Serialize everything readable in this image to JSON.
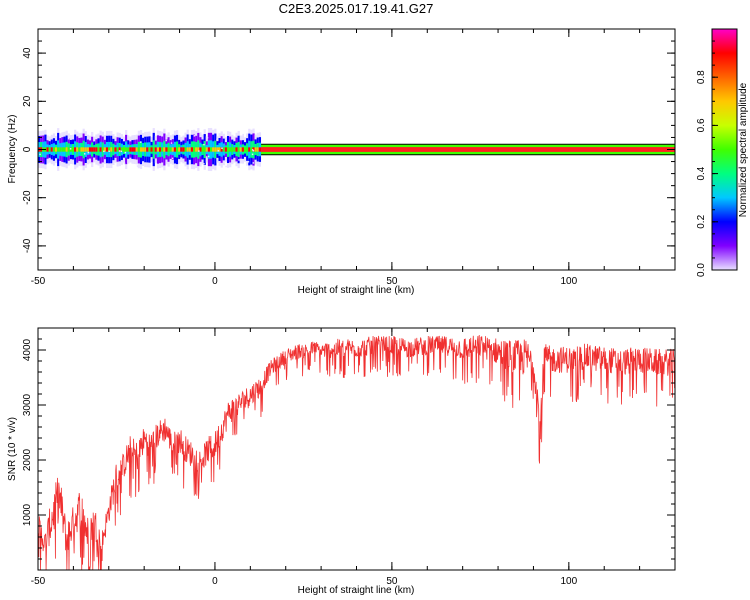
{
  "title": "C2E3.2025.017.19.41.G27",
  "chart_data": [
    {
      "type": "heatmap",
      "title": "C2E3.2025.017.19.41.G27",
      "xlabel": "Height of straight line (km)",
      "ylabel": "Frequency (Hz)",
      "xlim": [
        -50,
        130
      ],
      "ylim": [
        -50,
        50
      ],
      "xticks": [
        -50,
        0,
        50,
        100
      ],
      "xtick_labels": [
        "-50",
        "0",
        "50",
        "100"
      ],
      "yticks": [
        -40,
        -20,
        0,
        20,
        40
      ],
      "ytick_labels": [
        "-40",
        "-20",
        "0",
        "20",
        "40"
      ],
      "frequency_band": {
        "center": 0,
        "halfwidth": 2.2
      },
      "broadening_region_x": [
        -50,
        13
      ],
      "colorbar": {
        "label": "Normalized spectral amplitude",
        "range": [
          0,
          1
        ],
        "ticks": [
          0.0,
          0.2,
          0.4,
          0.6,
          0.8
        ],
        "tick_labels": [
          "0.0",
          "0.2",
          "0.4",
          "0.6",
          "0.8"
        ],
        "colors": [
          "#e8e0ff",
          "#8000ff",
          "#0000ff",
          "#00c8ff",
          "#00ff80",
          "#40ff00",
          "#c8ff00",
          "#ffc800",
          "#ff6400",
          "#ff0000",
          "#ff00c8"
        ]
      },
      "grid": false
    },
    {
      "type": "line",
      "xlabel": "Height of straight line (km)",
      "ylabel": "SNR (10 * v/v)",
      "xlim": [
        -50,
        130
      ],
      "ylim": [
        0,
        4400
      ],
      "xticks": [
        -50,
        0,
        50,
        100
      ],
      "xtick_labels": [
        "-50",
        "0",
        "50",
        "100"
      ],
      "yticks": [
        1000,
        2000,
        3000,
        4000
      ],
      "ytick_labels": [
        "1000",
        "2000",
        "3000",
        "4000"
      ],
      "color": "#f03030",
      "grid": false,
      "series": [
        {
          "x": [
            -50,
            -48,
            -46,
            -44,
            -42,
            -40,
            -38,
            -36,
            -34,
            -32,
            -30,
            -28,
            -26,
            -24,
            -22,
            -20,
            -18,
            -16,
            -14,
            -12,
            -10,
            -8,
            -6,
            -4,
            -2,
            0,
            2,
            4,
            6,
            8,
            10,
            12,
            14,
            16,
            18,
            20,
            22,
            24,
            26,
            28,
            30,
            35,
            40,
            45,
            50,
            55,
            60,
            65,
            70,
            75,
            80,
            85,
            88,
            90,
            92,
            93,
            95,
            100,
            105,
            110,
            115,
            120,
            125,
            130
          ],
          "values": [
            800,
            500,
            1000,
            1400,
            600,
            900,
            1200,
            700,
            900,
            500,
            1100,
            1700,
            1900,
            2200,
            2100,
            2400,
            2300,
            2500,
            2600,
            2300,
            2400,
            2200,
            2100,
            2000,
            2200,
            2300,
            2600,
            2900,
            3000,
            3100,
            3200,
            3300,
            3500,
            3700,
            3800,
            3900,
            3950,
            4000,
            4000,
            4050,
            4000,
            4050,
            4050,
            4100,
            4100,
            4050,
            4100,
            4100,
            4050,
            4100,
            4000,
            3900,
            3900,
            3800,
            2700,
            3900,
            3850,
            3850,
            3900,
            3850,
            3800,
            3850,
            3800,
            3800
          ],
          "noise_amplitude": [
            800,
            600,
            1200,
            1300,
            900,
            900,
            1100,
            900,
            900,
            600,
            700,
            800,
            700,
            800,
            800,
            700,
            700,
            700,
            700,
            600,
            700,
            700,
            700,
            600,
            700,
            700,
            700,
            700,
            600,
            600,
            600,
            600,
            500,
            400,
            400,
            400,
            400,
            400,
            400,
            400,
            400,
            500,
            500,
            500,
            500,
            500,
            500,
            500,
            600,
            600,
            700,
            900,
            1000,
            800,
            900,
            700,
            700,
            700,
            700,
            700,
            700,
            700,
            700,
            700
          ]
        }
      ]
    }
  ]
}
